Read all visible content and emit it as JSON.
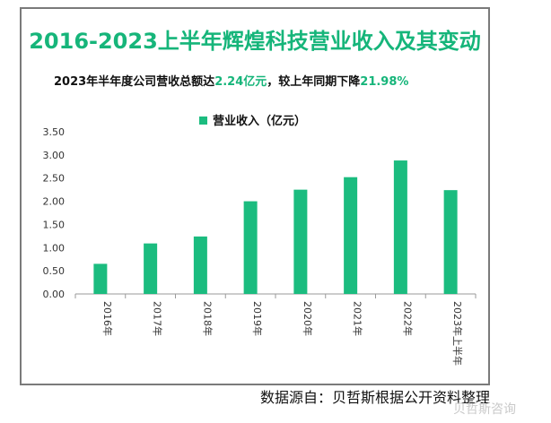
{
  "title": "2016-2023上半年辉煌科技营业收入及其变动",
  "subtitle": {
    "part1": "2023年半年度公司营收总额达",
    "value1": "2.24亿元",
    "part2": "，较上年同期下降",
    "value2": "21.98%"
  },
  "source": "数据源自：贝哲斯根据公开资料整理",
  "watermark": "贝哲斯咨询",
  "colors": {
    "title": "#16b57a",
    "bar": "#1bbc7f",
    "axis": "#9a9a9a"
  },
  "chart_data": {
    "type": "bar",
    "categories": [
      "2016年",
      "2017年",
      "2018年",
      "2019年",
      "2020年",
      "2021年",
      "2022年",
      "2023年上半年"
    ],
    "series": [
      {
        "name": "营业收入（亿元）",
        "values": [
          0.65,
          1.09,
          1.24,
          2.0,
          2.25,
          2.52,
          2.88,
          2.24
        ]
      }
    ],
    "ylim": [
      0,
      3.5
    ],
    "yticks": [
      "0.00",
      "0.50",
      "1.00",
      "1.50",
      "2.00",
      "2.50",
      "3.00",
      "3.50"
    ],
    "legend_position": "top",
    "grid": false
  }
}
